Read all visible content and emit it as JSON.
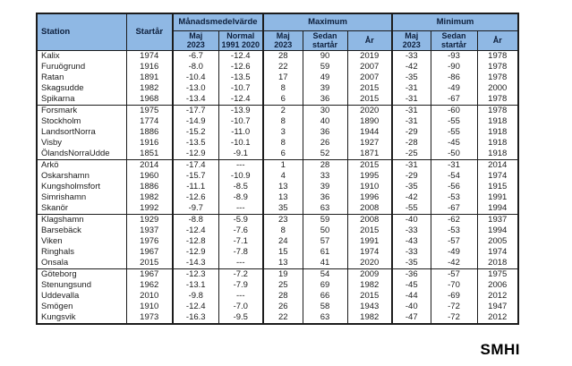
{
  "chart_data": {
    "type": "table",
    "headers": {
      "station": "Station",
      "start_year": "Startår",
      "monthly_mean_group": "Månadsmedelvärde",
      "maximum_group": "Maximum",
      "minimum_group": "Minimum",
      "maj_2023": "Maj\n2023",
      "normal_1991_2020": "Normal\n1991 2020",
      "sedan_startar": "Sedan\nstartår",
      "ar": "År"
    },
    "columns": [
      "Station",
      "Startår",
      "Månadsmedelvärde Maj 2023",
      "Månadsmedelvärde Normal 1991 2020",
      "Maximum Maj 2023",
      "Maximum Sedan startår",
      "Maximum År",
      "Minimum Maj 2023",
      "Minimum Sedan startår",
      "Minimum År"
    ],
    "groups": [
      [
        [
          "Kalix",
          "1974",
          "-6.7",
          "-12.4",
          "28",
          "90",
          "2019",
          "-33",
          "-93",
          "1978"
        ],
        [
          "Furuögrund",
          "1916",
          "-8.0",
          "-12.6",
          "22",
          "59",
          "2007",
          "-42",
          "-90",
          "1978"
        ],
        [
          "Ratan",
          "1891",
          "-10.4",
          "-13.5",
          "17",
          "49",
          "2007",
          "-35",
          "-86",
          "1978"
        ],
        [
          "Skagsudde",
          "1982",
          "-13.0",
          "-10.7",
          "8",
          "39",
          "2015",
          "-31",
          "-49",
          "2000"
        ],
        [
          "Spikarna",
          "1968",
          "-13.4",
          "-12.4",
          "6",
          "36",
          "2015",
          "-31",
          "-67",
          "1978"
        ]
      ],
      [
        [
          "Forsmark",
          "1975",
          "-17.7",
          "-13.9",
          "2",
          "30",
          "2020",
          "-31",
          "-60",
          "1978"
        ],
        [
          "Stockholm",
          "1774",
          "-14.9",
          "-10.7",
          "8",
          "40",
          "1890",
          "-31",
          "-55",
          "1918"
        ],
        [
          "LandsortNorra",
          "1886",
          "-15.2",
          "-11.0",
          "3",
          "36",
          "1944",
          "-29",
          "-55",
          "1918"
        ],
        [
          "Visby",
          "1916",
          "-13.5",
          "-10.1",
          "8",
          "26",
          "1927",
          "-28",
          "-45",
          "1918"
        ],
        [
          "ÖlandsNorraUdde",
          "1851",
          "-12.9",
          "-9.1",
          "6",
          "52",
          "1871",
          "-25",
          "-50",
          "1918"
        ]
      ],
      [
        [
          "Arkö",
          "2014",
          "-17.4",
          "---",
          "1",
          "28",
          "2015",
          "-31",
          "-31",
          "2014"
        ],
        [
          "Oskarshamn",
          "1960",
          "-15.7",
          "-10.9",
          "4",
          "33",
          "1995",
          "-29",
          "-54",
          "1974"
        ],
        [
          "Kungsholmsfort",
          "1886",
          "-11.1",
          "-8.5",
          "13",
          "39",
          "1910",
          "-35",
          "-56",
          "1915"
        ],
        [
          "Simrishamn",
          "1982",
          "-12.6",
          "-8.9",
          "13",
          "36",
          "1996",
          "-42",
          "-53",
          "1991"
        ],
        [
          "Skanör",
          "1992",
          "-9.7",
          "---",
          "35",
          "63",
          "2008",
          "-55",
          "-67",
          "1994"
        ]
      ],
      [
        [
          "Klagshamn",
          "1929",
          "-8.8",
          "-5.9",
          "23",
          "59",
          "2008",
          "-40",
          "-62",
          "1937"
        ],
        [
          "Barsebäck",
          "1937",
          "-12.4",
          "-7.6",
          "8",
          "50",
          "2015",
          "-33",
          "-53",
          "1994"
        ],
        [
          "Viken",
          "1976",
          "-12.8",
          "-7.1",
          "24",
          "57",
          "1991",
          "-43",
          "-57",
          "2005"
        ],
        [
          "Ringhals",
          "1967",
          "-12.9",
          "-7.8",
          "15",
          "61",
          "1974",
          "-33",
          "-49",
          "1974"
        ],
        [
          "Onsala",
          "2015",
          "-14.3",
          "---",
          "13",
          "41",
          "2020",
          "-35",
          "-42",
          "2018"
        ]
      ],
      [
        [
          "Göteborg",
          "1967",
          "-12.3",
          "-7.2",
          "19",
          "54",
          "2009",
          "-36",
          "-57",
          "1975"
        ],
        [
          "Stenungsund",
          "1962",
          "-13.1",
          "-7.9",
          "25",
          "69",
          "1982",
          "-45",
          "-70",
          "2006"
        ],
        [
          "Uddevalla",
          "2010",
          "-9.8",
          "---",
          "28",
          "66",
          "2015",
          "-44",
          "-69",
          "2012"
        ],
        [
          "Smögen",
          "1910",
          "-12.4",
          "-7.0",
          "26",
          "58",
          "1943",
          "-40",
          "-72",
          "1947"
        ],
        [
          "Kungsvik",
          "1973",
          "-16.3",
          "-9.5",
          "22",
          "63",
          "1982",
          "-47",
          "-72",
          "2012"
        ]
      ]
    ],
    "colors": {
      "header_background": "#8FB8E4",
      "header_text": "#0d1f3c",
      "border": "#1c1c1c"
    }
  },
  "footer": {
    "logo_text": "SMHI"
  }
}
